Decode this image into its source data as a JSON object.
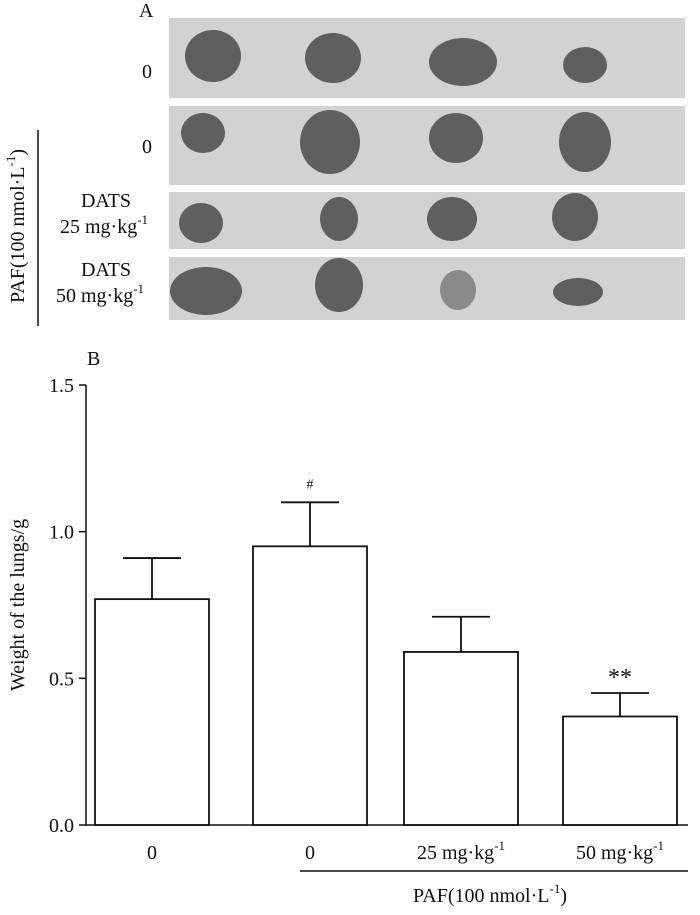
{
  "panel_a": {
    "label": "A",
    "rows": [
      {
        "label_lines": [
          "0"
        ]
      },
      {
        "label_lines": [
          "0"
        ]
      },
      {
        "label_lines": [
          "DATS",
          "25 mg·kg",
          "-1"
        ]
      },
      {
        "label_lines": [
          "DATS",
          "50 mg·kg",
          "-1"
        ]
      }
    ],
    "bracket": {
      "text": "PAF(100 nmol·L",
      "sup": "-1",
      "close": ")"
    }
  },
  "panel_b": {
    "label": "B"
  },
  "chart_data": {
    "type": "bar",
    "categories": [
      "0",
      "0",
      "25 mg·kg",
      "50 mg·kg"
    ],
    "category_sups": [
      "",
      "",
      "-1",
      "-1"
    ],
    "values": [
      0.77,
      0.95,
      0.59,
      0.37
    ],
    "errors": [
      0.14,
      0.15,
      0.12,
      0.08
    ],
    "annotations": [
      "",
      "#",
      "",
      "**"
    ],
    "ylabel": "Weight of the lungs/g",
    "ylim": [
      0,
      1.5
    ],
    "yticks": [
      "0.0",
      "0.5",
      "1.0",
      "1.5"
    ],
    "ytick_values": [
      0,
      0.5,
      1.0,
      1.5
    ],
    "group_label": {
      "text": "PAF(100 nmol·L",
      "sup": "-1",
      "close": ")"
    },
    "bar_color": "#ffffff",
    "edge_color": "#111111"
  }
}
